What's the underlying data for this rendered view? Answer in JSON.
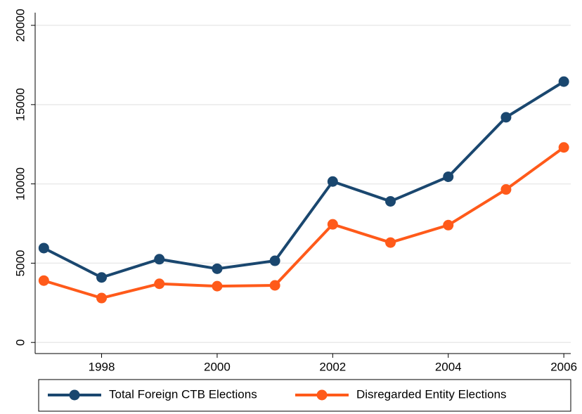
{
  "chart_data": {
    "type": "line",
    "x": [
      1997,
      1998,
      1999,
      2000,
      2001,
      2002,
      2003,
      2004,
      2005,
      2006
    ],
    "series": [
      {
        "name": "Total Foreign CTB Elections",
        "color": "#1a476f",
        "values": [
          5950,
          4100,
          5250,
          4650,
          5150,
          10150,
          8900,
          10450,
          14200,
          16450
        ]
      },
      {
        "name": "Disregarded Entity Elections",
        "color": "#ff5a1a",
        "values": [
          3900,
          2800,
          3700,
          3550,
          3600,
          7450,
          6300,
          7400,
          9650,
          12300
        ]
      }
    ],
    "xlim": [
      1996.85,
      2006.12
    ],
    "xticks": [
      1998,
      2000,
      2002,
      2004,
      2006
    ],
    "ylim": [
      -700,
      20800
    ],
    "yticks": [
      0,
      5000,
      10000,
      15000,
      20000
    ],
    "grid": true,
    "legend": "bottom"
  }
}
